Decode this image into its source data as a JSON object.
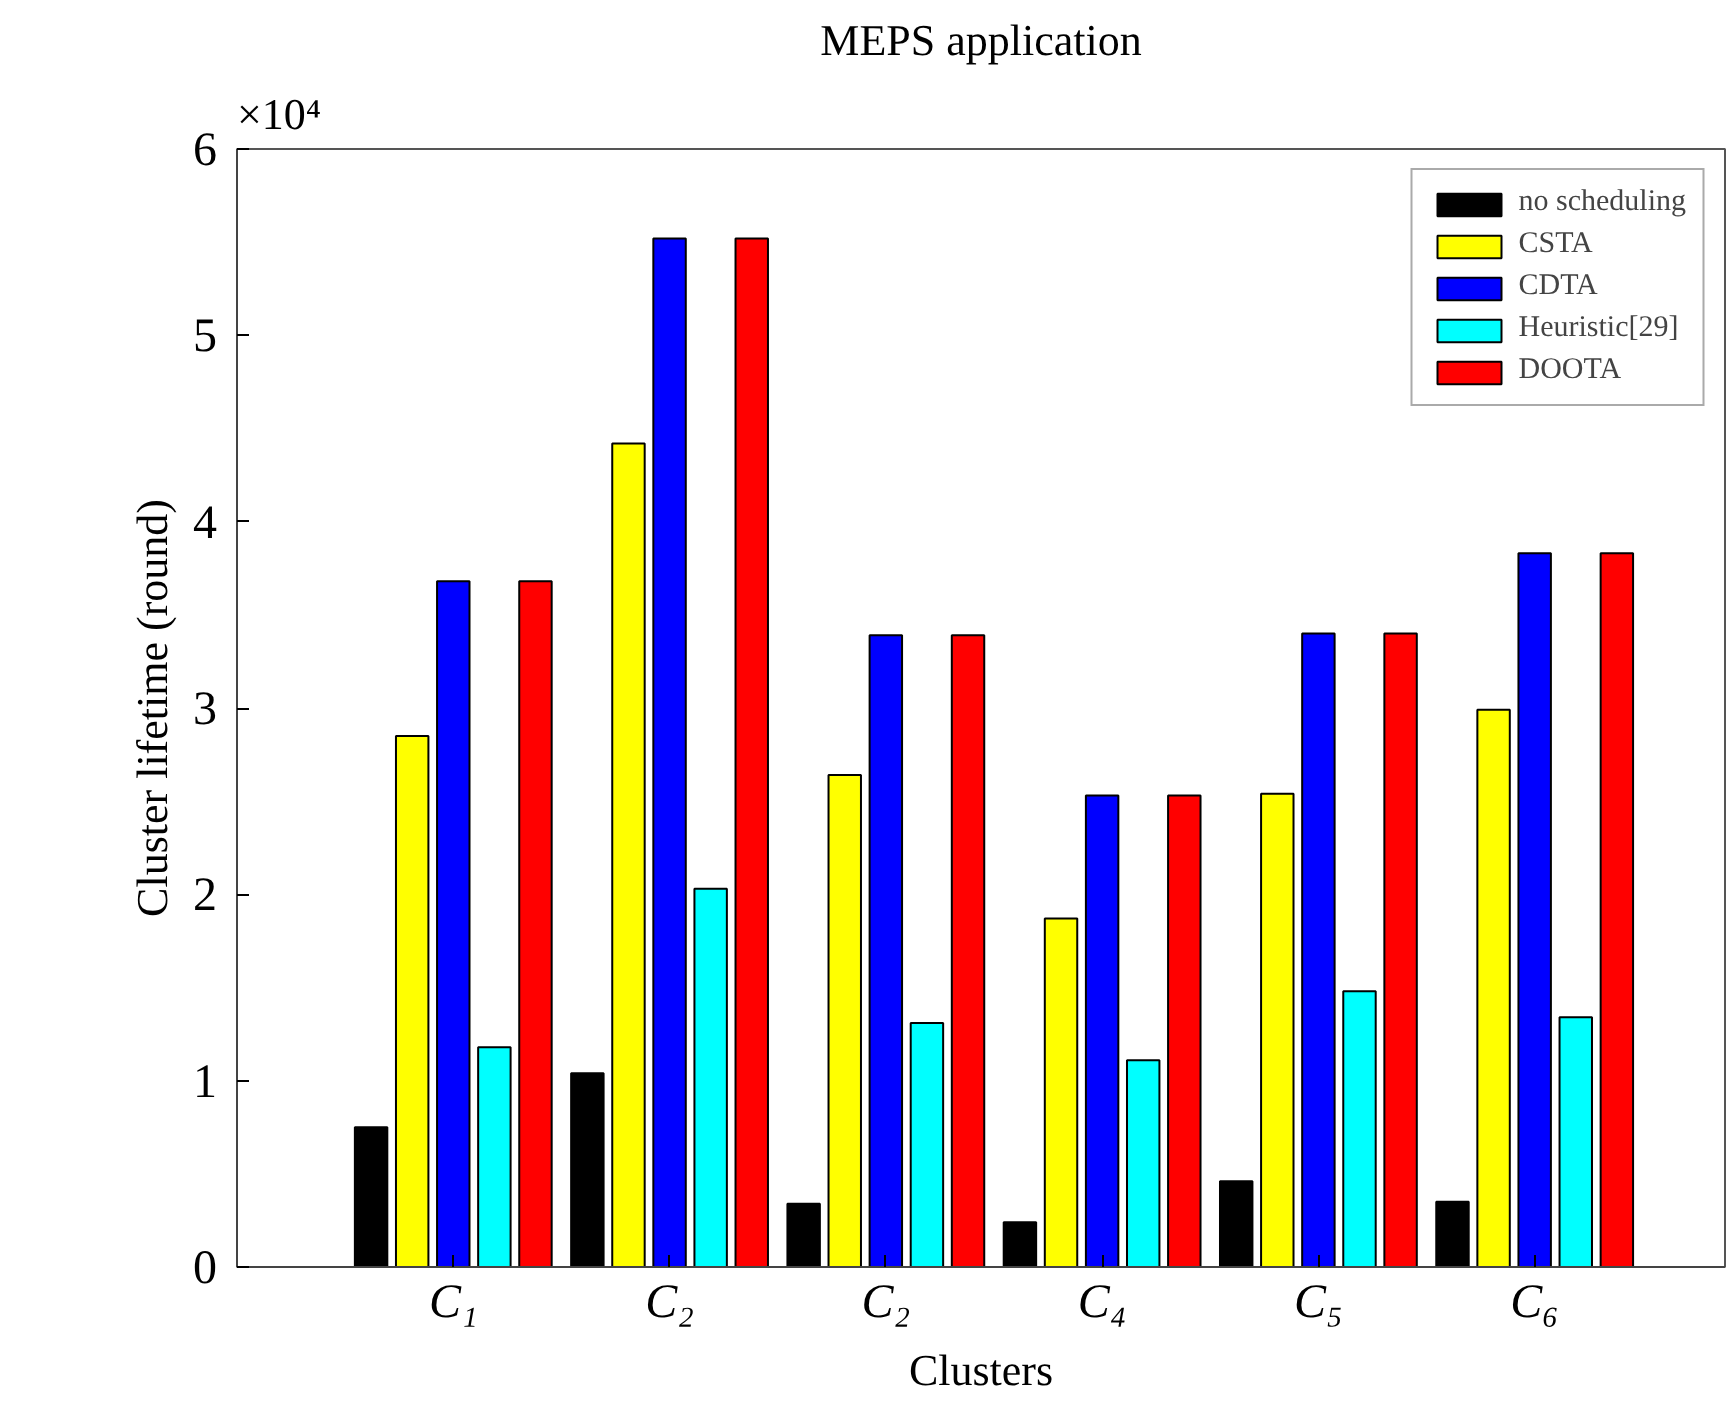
{
  "chart_data": {
    "type": "bar",
    "title": "MEPS application",
    "xlabel": "Clusters",
    "ylabel": "Cluster lifetime (round)",
    "categories": [
      "C₁",
      "C₂",
      "C₂",
      "C₄",
      "C₅",
      "C₆"
    ],
    "series": [
      {
        "name": "no scheduling",
        "color": "#000000",
        "values": [
          0.75,
          1.04,
          0.34,
          0.24,
          0.46,
          0.35
        ]
      },
      {
        "name": "CSTA",
        "color": "#ffff00",
        "values": [
          2.85,
          4.42,
          2.64,
          1.87,
          2.54,
          2.99
        ]
      },
      {
        "name": "CDTA",
        "color": "#0000ff",
        "values": [
          3.68,
          5.52,
          3.39,
          2.53,
          3.4,
          3.83
        ]
      },
      {
        "name": "Heuristic[29]",
        "color": "#00ffff",
        "values": [
          1.18,
          2.03,
          1.31,
          1.11,
          1.48,
          1.34
        ]
      },
      {
        "name": "DOOTA",
        "color": "#ff0000",
        "values": [
          3.68,
          5.52,
          3.39,
          2.53,
          3.4,
          3.83
        ]
      }
    ],
    "ylim": [
      0,
      6
    ],
    "yticks": [
      0,
      1,
      2,
      3,
      4,
      5,
      6
    ],
    "annotations": [
      "×10⁴"
    ],
    "legend": "top right",
    "grid": false
  }
}
